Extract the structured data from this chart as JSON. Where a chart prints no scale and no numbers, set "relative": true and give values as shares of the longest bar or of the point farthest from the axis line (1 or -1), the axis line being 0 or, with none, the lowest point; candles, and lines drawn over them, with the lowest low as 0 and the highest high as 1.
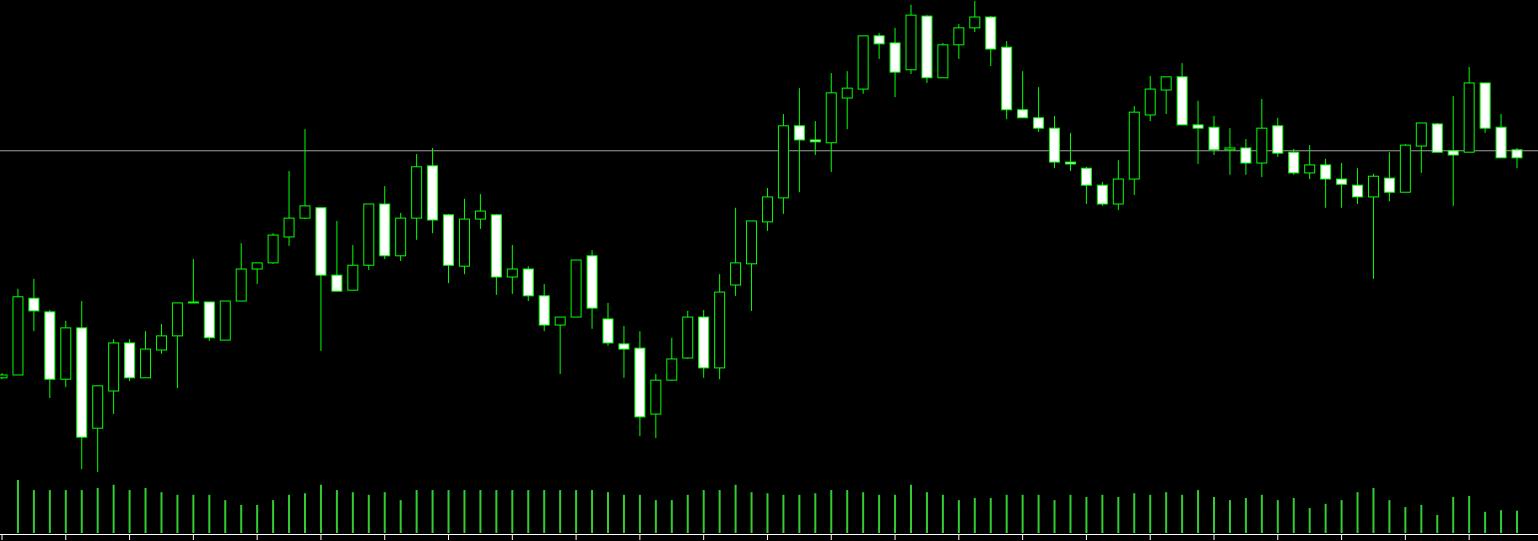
{
  "chart_data": [
    {
      "type": "candlestick",
      "relative": true,
      "color": "#00ff00",
      "categories": [
        null,
        null,
        null,
        null,
        null,
        null,
        null,
        null,
        null,
        null,
        null,
        null,
        null,
        null,
        null,
        null,
        null,
        null,
        null,
        null,
        null,
        null,
        null,
        null,
        null,
        null,
        null,
        null,
        null,
        null,
        null,
        null,
        null,
        null,
        null,
        null,
        null,
        null,
        null,
        null,
        null,
        null,
        null,
        null,
        null,
        null,
        null,
        null,
        null,
        null,
        null,
        null,
        null,
        null,
        null,
        null,
        null,
        null,
        null,
        null,
        null,
        null,
        null,
        null,
        null,
        null,
        null,
        null,
        null,
        null,
        null,
        null,
        null,
        null,
        null,
        null,
        null,
        null,
        null,
        null,
        null,
        null,
        null,
        null,
        null,
        null,
        null,
        null,
        null,
        null,
        null,
        null,
        null,
        null,
        null,
        null
      ],
      "ref_lines": [
        {
          "axis": "y",
          "value": 0.682,
          "color": "#a0a0a0"
        }
      ],
      "ohlc": [
        [
          0.2,
          0.21,
          0.197,
          0.206
        ],
        [
          0.206,
          0.389,
          0.206,
          0.372
        ],
        [
          0.369,
          0.41,
          0.299,
          0.342
        ],
        [
          0.34,
          0.344,
          0.157,
          0.197
        ],
        [
          0.197,
          0.321,
          0.18,
          0.306
        ],
        [
          0.306,
          0.363,
          0.006,
          0.074
        ],
        [
          0.093,
          0.183,
          0,
          0.183
        ],
        [
          0.172,
          0.282,
          0.123,
          0.274
        ],
        [
          0.274,
          0.282,
          0.193,
          0.2
        ],
        [
          0.2,
          0.299,
          0.2,
          0.261
        ],
        [
          0.259,
          0.314,
          0.251,
          0.289
        ],
        [
          0.289,
          0.359,
          0.178,
          0.359
        ],
        [
          0.361,
          0.452,
          0.359,
          0.361
        ],
        [
          0.361,
          0.361,
          0.278,
          0.285
        ],
        [
          0.28,
          0.363,
          0.28,
          0.363
        ],
        [
          0.363,
          0.486,
          0.363,
          0.431
        ],
        [
          0.431,
          0.444,
          0.399,
          0.444
        ],
        [
          0.444,
          0.507,
          0.442,
          0.503
        ],
        [
          0.499,
          0.639,
          0.48,
          0.539
        ],
        [
          0.539,
          0.728,
          0.537,
          0.565
        ],
        [
          0.561,
          0.561,
          0.257,
          0.418
        ],
        [
          0.418,
          0.533,
          0.384,
          0.384
        ],
        [
          0.386,
          0.482,
          0.386,
          0.439
        ],
        [
          0.439,
          0.569,
          0.429,
          0.569
        ],
        [
          0.569,
          0.607,
          0.452,
          0.459
        ],
        [
          0.459,
          0.55,
          0.448,
          0.539
        ],
        [
          0.539,
          0.675,
          0.493,
          0.648
        ],
        [
          0.65,
          0.688,
          0.507,
          0.535
        ],
        [
          0.546,
          0.548,
          0.401,
          0.439
        ],
        [
          0.437,
          0.58,
          0.42,
          0.537
        ],
        [
          0.537,
          0.59,
          0.516,
          0.554
        ],
        [
          0.546,
          0.548,
          0.376,
          0.414
        ],
        [
          0.414,
          0.482,
          0.378,
          0.431
        ],
        [
          0.431,
          0.437,
          0.363,
          0.374
        ],
        [
          0.374,
          0.399,
          0.299,
          0.312
        ],
        [
          0.312,
          0.329,
          0.208,
          0.329
        ],
        [
          0.329,
          0.45,
          0.329,
          0.45
        ],
        [
          0.459,
          0.471,
          0.304,
          0.348
        ],
        [
          0.325,
          0.359,
          0.268,
          0.274
        ],
        [
          0.272,
          0.31,
          0.2,
          0.261
        ],
        [
          0.263,
          0.299,
          0.076,
          0.117
        ],
        [
          0.123,
          0.208,
          0.072,
          0.195
        ],
        [
          0.195,
          0.285,
          0.195,
          0.24
        ],
        [
          0.242,
          0.342,
          0.24,
          0.329
        ],
        [
          0.329,
          0.344,
          0.2,
          0.221
        ],
        [
          0.221,
          0.42,
          0.197,
          0.382
        ],
        [
          0.397,
          0.561,
          0.374,
          0.444
        ],
        [
          0.442,
          0.533,
          0.342,
          0.533
        ],
        [
          0.531,
          0.603,
          0.512,
          0.584
        ],
        [
          0.582,
          0.76,
          0.548,
          0.735
        ],
        [
          0.735,
          0.815,
          0.594,
          0.705
        ],
        [
          0.705,
          0.745,
          0.673,
          0.701
        ],
        [
          0.699,
          0.847,
          0.637,
          0.805
        ],
        [
          0.794,
          0.851,
          0.728,
          0.815
        ],
        [
          0.813,
          0.926,
          0.803,
          0.926
        ],
        [
          0.926,
          0.932,
          0.877,
          0.909
        ],
        [
          0.911,
          0.943,
          0.796,
          0.849
        ],
        [
          0.854,
          0.992,
          0.845,
          0.97
        ],
        [
          0.968,
          0.97,
          0.826,
          0.837
        ],
        [
          0.837,
          0.911,
          0.837,
          0.907
        ],
        [
          0.907,
          0.951,
          0.877,
          0.943
        ],
        [
          0.943,
          1,
          0.934,
          0.966
        ],
        [
          0.966,
          0.968,
          0.862,
          0.898
        ],
        [
          0.902,
          0.915,
          0.749,
          0.769
        ],
        [
          0.769,
          0.851,
          0.752,
          0.752
        ],
        [
          0.752,
          0.817,
          0.722,
          0.73
        ],
        [
          0.73,
          0.756,
          0.645,
          0.658
        ],
        [
          0.658,
          0.72,
          0.639,
          0.654
        ],
        [
          0.645,
          0.648,
          0.569,
          0.609
        ],
        [
          0.609,
          0.616,
          0.565,
          0.569
        ],
        [
          0.569,
          0.662,
          0.556,
          0.622
        ],
        [
          0.622,
          0.777,
          0.588,
          0.764
        ],
        [
          0.758,
          0.841,
          0.745,
          0.813
        ],
        [
          0.811,
          0.839,
          0.76,
          0.839
        ],
        [
          0.839,
          0.868,
          0.737,
          0.737
        ],
        [
          0.737,
          0.788,
          0.654,
          0.73
        ],
        [
          0.732,
          0.756,
          0.673,
          0.684
        ],
        [
          0.684,
          0.73,
          0.631,
          0.688
        ],
        [
          0.688,
          0.707,
          0.631,
          0.656
        ],
        [
          0.656,
          0.792,
          0.626,
          0.73
        ],
        [
          0.735,
          0.752,
          0.669,
          0.677
        ],
        [
          0.679,
          0.686,
          0.631,
          0.635
        ],
        [
          0.635,
          0.694,
          0.622,
          0.652
        ],
        [
          0.652,
          0.665,
          0.561,
          0.622
        ],
        [
          0.622,
          0.656,
          0.561,
          0.611
        ],
        [
          0.609,
          0.645,
          0.569,
          0.584
        ],
        [
          0.584,
          0.633,
          0.41,
          0.628
        ],
        [
          0.624,
          0.679,
          0.575,
          0.594
        ],
        [
          0.594,
          0.696,
          0.594,
          0.694
        ],
        [
          0.692,
          0.741,
          0.635,
          0.741
        ],
        [
          0.739,
          0.741,
          0.679,
          0.679
        ],
        [
          0.682,
          0.798,
          0.565,
          0.673
        ],
        [
          0.679,
          0.86,
          0.679,
          0.826
        ],
        [
          0.826,
          0.826,
          0.72,
          0.73
        ],
        [
          0.732,
          0.76,
          0.667,
          0.667
        ],
        [
          0.684,
          0.688,
          0.645,
          0.667
        ]
      ]
    },
    {
      "type": "bar",
      "relative": true,
      "color": "#32cd32",
      "categories": [
        null,
        null,
        null,
        null,
        null,
        null,
        null,
        null,
        null,
        null,
        null,
        null,
        null,
        null,
        null,
        null,
        null,
        null,
        null,
        null,
        null,
        null,
        null,
        null,
        null,
        null,
        null,
        null,
        null,
        null,
        null,
        null,
        null,
        null,
        null,
        null,
        null,
        null,
        null,
        null,
        null,
        null,
        null,
        null,
        null,
        null,
        null,
        null,
        null,
        null,
        null,
        null,
        null,
        null,
        null,
        null,
        null,
        null,
        null,
        null,
        null,
        null,
        null,
        null,
        null,
        null,
        null,
        null,
        null,
        null,
        null,
        null,
        null,
        null,
        null,
        null,
        null,
        null,
        null,
        null,
        null,
        null,
        null,
        null,
        null,
        null,
        null,
        null,
        null,
        null,
        null,
        null,
        null,
        null,
        null,
        null
      ],
      "values": [
        null,
        1,
        0.81,
        0.81,
        0.81,
        0.81,
        0.85,
        0.91,
        0.81,
        0.85,
        0.77,
        0.72,
        0.72,
        0.72,
        0.62,
        0.53,
        0.53,
        0.62,
        0.72,
        0.75,
        0.91,
        0.81,
        0.77,
        0.72,
        0.77,
        0.62,
        0.81,
        0.81,
        0.81,
        0.81,
        0.81,
        0.81,
        0.81,
        0.81,
        0.81,
        0.81,
        0.81,
        0.81,
        0.77,
        0.72,
        0.72,
        0.62,
        0.62,
        0.72,
        0.81,
        0.81,
        0.91,
        0.77,
        0.75,
        0.72,
        0.72,
        0.75,
        0.81,
        0.81,
        0.77,
        0.72,
        0.72,
        0.91,
        0.77,
        0.72,
        0.62,
        0.66,
        0.66,
        0.72,
        0.72,
        0.72,
        0.62,
        0.72,
        0.68,
        0.72,
        0.68,
        0.75,
        0.72,
        0.77,
        0.72,
        0.81,
        0.68,
        0.62,
        0.66,
        0.72,
        0.62,
        0.66,
        0.47,
        0.55,
        0.62,
        0.77,
        0.85,
        0.62,
        0.49,
        0.53,
        0.34,
        0.68,
        0.7,
        0.4,
        0.43,
        0.42
      ]
    }
  ]
}
